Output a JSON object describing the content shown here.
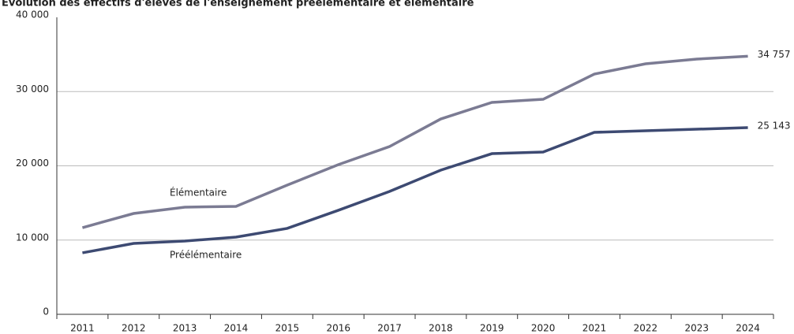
{
  "chart_data": {
    "type": "line",
    "title": "Évolution des effectifs d'élèves de l'enseignement préélémentaire et élémentaire",
    "categories": [
      "2011",
      "2012",
      "2013",
      "2014",
      "2015",
      "2016",
      "2017",
      "2018",
      "2019",
      "2020",
      "2021",
      "2022",
      "2023",
      "2024"
    ],
    "series": [
      {
        "name": "Élémentaire",
        "color": "#7b7b93",
        "values": [
          11670,
          13580,
          14430,
          14540,
          17400,
          20160,
          22600,
          26310,
          28540,
          28960,
          32360,
          33740,
          34380,
          34757
        ],
        "value_labels": [
          null,
          null,
          null,
          null,
          null,
          null,
          null,
          null,
          null,
          null,
          null,
          null,
          null,
          "34 757"
        ]
      },
      {
        "name": "Préélémentaire",
        "color": "#3d4a72",
        "values": [
          8280,
          9550,
          9870,
          10400,
          11570,
          14010,
          16550,
          19420,
          21640,
          21860,
          24510,
          24720,
          24930,
          25143
        ],
        "value_labels": [
          null,
          null,
          null,
          null,
          null,
          null,
          null,
          null,
          null,
          null,
          null,
          null,
          null,
          "25 143"
        ]
      }
    ],
    "ylim": [
      0,
      40000
    ],
    "yticks": [
      0,
      {
        "value": 10000,
        "label": "10 000"
      },
      {
        "value": 20000,
        "label": "20 000"
      },
      {
        "value": 30000,
        "label": "30 000"
      },
      {
        "value": 40000,
        "label": "40 000"
      }
    ],
    "grid": true
  }
}
